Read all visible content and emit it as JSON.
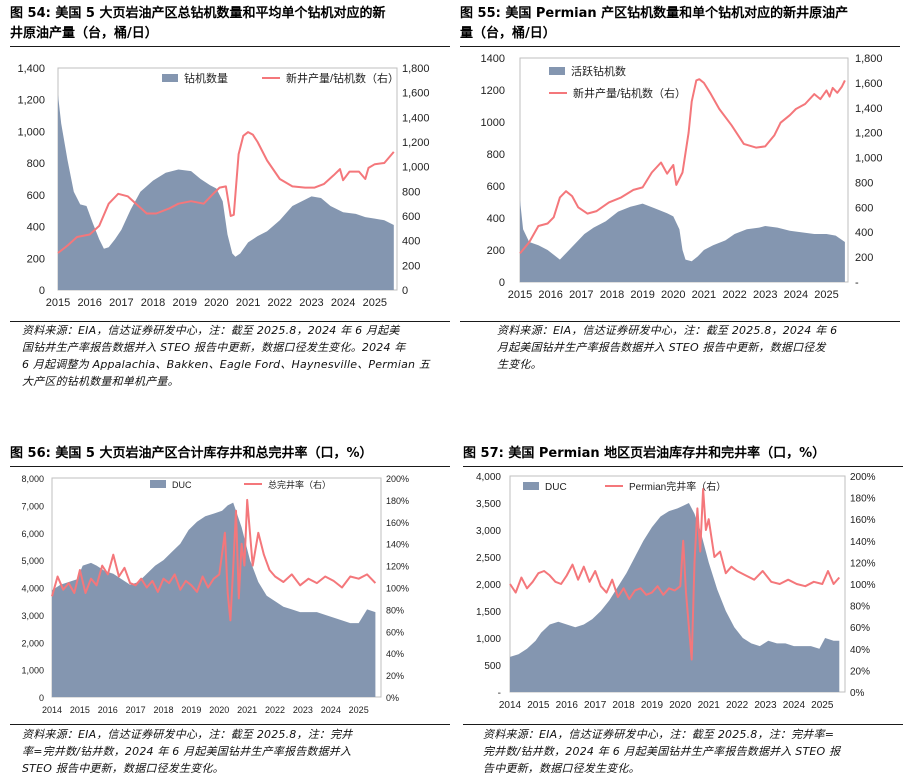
{
  "colors": {
    "area": "#8496b0",
    "line": "#f4777b",
    "frame": "#bfbfbf"
  },
  "panels": [
    {
      "title_line1": "图 54:  美国 5 大页岩油产区总钻机数量和平均单个钻机对应的新",
      "title_line2": "井原油产量（台，桶/日）",
      "source": [
        "资料来源：EIA，信达证券研发中心，注：截至 2025.8，2024 年 6 月起美",
        "国钻井生产率报告数据并入 STEO 报告中更新，数据口径发生变化。2024 年",
        "6 月起调整为 Appalachia、Bakken、Eagle Ford、Haynesville、Permian 五",
        "大产区的钻机数量和单机产量。"
      ]
    },
    {
      "title_line1": "图 55:  美国 Permian 产区钻机数量和单个钻机对应的新井原油产",
      "title_line2": "量（台，桶/日）",
      "source": [
        "资料来源：EIA，信达证券研发中心，注：截至 2025.8，2024 年 6",
        "月起美国钻井生产率报告数据并入 STEO 报告中更新，数据口径发",
        "生变化。"
      ]
    },
    {
      "title_line1": "图 56:  美国 5 大页岩油产区合计库存井和总完井率（口，%）",
      "title_line2": "",
      "source": [
        "资料来源：EIA，信达证券研发中心，注：截至 2025.8，注：完井",
        "率=完井数/钻井数，2024 年 6 月起美国钻井生产率报告数据并入",
        "STEO 报告中更新，数据口径发生变化。"
      ]
    },
    {
      "title_line1": "图 57:  美国 Permian 地区页岩油库存井和完井率（口，%）",
      "title_line2": "",
      "source": [
        "资料来源：EIA，信达证券研发中心，注：截至 2025.8，注：完井率=",
        "完井数/钻井数，2024 年 6 月起美国钻井生产率报告数据并入 STEO 报",
        "告中更新，数据口径发生变化。"
      ]
    }
  ],
  "chart_data": [
    {
      "type": "area",
      "x_ticks": [
        "2015",
        "2016",
        "2017",
        "2018",
        "2019",
        "2020",
        "2021",
        "2022",
        "2023",
        "2024",
        "2025"
      ],
      "ylim": [
        0,
        1400
      ],
      "y_ticks": [
        "0",
        "200",
        "400",
        "600",
        "800",
        "1,000",
        "1,200",
        "1,400"
      ],
      "y2lim": [
        0,
        1800
      ],
      "y2_ticks": [
        "0",
        "200",
        "400",
        "600",
        "800",
        "1,000",
        "1,200",
        "1,400",
        "1,600",
        "1,800"
      ],
      "legend": [
        "钻机数量",
        "新井产量/钻机数（右）"
      ],
      "series": [
        {
          "name": "钻机数量",
          "axis": "left",
          "kind": "area",
          "x": [
            2015.0,
            2015.1,
            2015.3,
            2015.5,
            2015.7,
            2015.9,
            2016.1,
            2016.3,
            2016.45,
            2016.6,
            2016.8,
            2017.0,
            2017.3,
            2017.6,
            2018.0,
            2018.4,
            2018.8,
            2019.2,
            2019.5,
            2019.8,
            2020.0,
            2020.2,
            2020.35,
            2020.5,
            2020.6,
            2020.75,
            2021.0,
            2021.3,
            2021.6,
            2022.0,
            2022.4,
            2022.8,
            2023.0,
            2023.3,
            2023.6,
            2024.0,
            2024.4,
            2024.7,
            2025.0,
            2025.3,
            2025.6
          ],
          "values": [
            1230,
            1050,
            820,
            620,
            540,
            530,
            420,
            320,
            260,
            270,
            320,
            380,
            510,
            620,
            690,
            740,
            760,
            750,
            700,
            660,
            640,
            560,
            350,
            230,
            210,
            230,
            300,
            340,
            370,
            440,
            530,
            570,
            590,
            580,
            530,
            490,
            480,
            460,
            450,
            440,
            410
          ]
        },
        {
          "name": "新井产量/钻机数（右）",
          "axis": "right",
          "kind": "line",
          "x": [
            2015.0,
            2015.3,
            2015.6,
            2016.0,
            2016.3,
            2016.6,
            2016.9,
            2017.2,
            2017.5,
            2017.8,
            2018.1,
            2018.5,
            2018.8,
            2019.2,
            2019.6,
            2019.9,
            2020.1,
            2020.3,
            2020.45,
            2020.55,
            2020.7,
            2020.85,
            2021.0,
            2021.15,
            2021.3,
            2021.6,
            2022.0,
            2022.4,
            2022.8,
            2023.1,
            2023.4,
            2023.7,
            2023.9,
            2024.0,
            2024.2,
            2024.5,
            2024.7,
            2024.8,
            2025.0,
            2025.3,
            2025.6
          ],
          "values": [
            300,
            360,
            430,
            450,
            520,
            700,
            780,
            760,
            690,
            620,
            620,
            660,
            700,
            720,
            700,
            780,
            830,
            840,
            600,
            610,
            1100,
            1250,
            1280,
            1260,
            1200,
            1050,
            900,
            840,
            830,
            830,
            860,
            930,
            980,
            890,
            960,
            960,
            900,
            990,
            1020,
            1030,
            1120
          ]
        }
      ]
    },
    {
      "type": "area",
      "x_ticks": [
        "2015",
        "2016",
        "2017",
        "2018",
        "2019",
        "2020",
        "2021",
        "2022",
        "2023",
        "2024",
        "2025"
      ],
      "ylim": [
        0,
        1400
      ],
      "y_ticks": [
        "0",
        "200",
        "400",
        "600",
        "800",
        "1000",
        "1200",
        "1400"
      ],
      "y2lim": [
        0,
        1800
      ],
      "y2_ticks": [
        "-",
        "200",
        "400",
        "600",
        "800",
        "1,000",
        "1,200",
        "1,400",
        "1,600",
        "1,800"
      ],
      "legend": [
        "活跃钻机数",
        "新井产量/钻机数（右）"
      ],
      "series": [
        {
          "name": "活跃钻机数",
          "axis": "left",
          "kind": "area",
          "x": [
            2015.0,
            2015.1,
            2015.3,
            2015.6,
            2015.9,
            2016.1,
            2016.3,
            2016.5,
            2016.8,
            2017.1,
            2017.4,
            2017.8,
            2018.2,
            2018.6,
            2019.0,
            2019.4,
            2019.8,
            2020.0,
            2020.2,
            2020.3,
            2020.4,
            2020.6,
            2020.8,
            2021.0,
            2021.3,
            2021.7,
            2022.0,
            2022.4,
            2022.8,
            2023.0,
            2023.4,
            2023.8,
            2024.2,
            2024.6,
            2025.0,
            2025.3,
            2025.6
          ],
          "values": [
            510,
            330,
            250,
            230,
            200,
            170,
            140,
            180,
            240,
            300,
            340,
            380,
            440,
            470,
            490,
            460,
            430,
            410,
            330,
            200,
            140,
            130,
            160,
            200,
            230,
            260,
            300,
            330,
            340,
            350,
            340,
            320,
            310,
            300,
            300,
            290,
            250
          ]
        },
        {
          "name": "新井产量/钻机数（右）",
          "axis": "right",
          "kind": "line",
          "x": [
            2015.0,
            2015.3,
            2015.6,
            2015.9,
            2016.1,
            2016.3,
            2016.5,
            2016.7,
            2016.9,
            2017.2,
            2017.5,
            2017.9,
            2018.3,
            2018.7,
            2019.0,
            2019.3,
            2019.6,
            2019.8,
            2020.0,
            2020.1,
            2020.3,
            2020.5,
            2020.6,
            2020.75,
            2020.85,
            2021.0,
            2021.2,
            2021.5,
            2021.9,
            2022.3,
            2022.7,
            2023.0,
            2023.3,
            2023.5,
            2023.8,
            2024.0,
            2024.3,
            2024.6,
            2024.8,
            2025.0,
            2025.1,
            2025.2,
            2025.35,
            2025.5,
            2025.6
          ],
          "values": [
            230,
            320,
            450,
            470,
            520,
            680,
            730,
            690,
            600,
            550,
            570,
            640,
            680,
            740,
            760,
            880,
            960,
            870,
            940,
            780,
            880,
            1200,
            1450,
            1620,
            1630,
            1600,
            1520,
            1390,
            1260,
            1110,
            1080,
            1090,
            1180,
            1280,
            1340,
            1390,
            1430,
            1510,
            1470,
            1540,
            1490,
            1560,
            1520,
            1570,
            1620
          ]
        }
      ]
    },
    {
      "type": "area",
      "x_ticks": [
        "2014",
        "2015",
        "2016",
        "2017",
        "2018",
        "2019",
        "2020",
        "2021",
        "2022",
        "2023",
        "2024",
        "2025"
      ],
      "ylim": [
        0,
        8000
      ],
      "y_ticks": [
        "0",
        "1,000",
        "2,000",
        "3,000",
        "4,000",
        "5,000",
        "6,000",
        "7,000",
        "8,000"
      ],
      "y2lim": [
        0,
        200
      ],
      "y2_ticks": [
        "0%",
        "20%",
        "40%",
        "60%",
        "80%",
        "100%",
        "120%",
        "140%",
        "160%",
        "180%",
        "200%"
      ],
      "legend": [
        "DUC",
        "总完井率（右）"
      ],
      "series": [
        {
          "name": "DUC",
          "axis": "left",
          "kind": "area",
          "x": [
            2014.0,
            2014.3,
            2014.6,
            2014.9,
            2015.1,
            2015.4,
            2015.6,
            2015.9,
            2016.2,
            2016.5,
            2016.8,
            2017.1,
            2017.4,
            2017.7,
            2018.0,
            2018.3,
            2018.6,
            2018.9,
            2019.2,
            2019.5,
            2019.8,
            2020.1,
            2020.3,
            2020.5,
            2020.8,
            2021.1,
            2021.4,
            2021.7,
            2022.0,
            2022.3,
            2022.6,
            2022.9,
            2023.2,
            2023.5,
            2023.8,
            2024.1,
            2024.4,
            2024.7,
            2025.0,
            2025.3,
            2025.6
          ],
          "values": [
            3900,
            4100,
            4200,
            4300,
            4800,
            4900,
            4800,
            4600,
            4500,
            4300,
            4100,
            4200,
            4500,
            4800,
            5000,
            5300,
            5600,
            6100,
            6400,
            6600,
            6700,
            6800,
            7000,
            7100,
            6200,
            5000,
            4200,
            3700,
            3500,
            3300,
            3200,
            3100,
            3100,
            3100,
            3000,
            2900,
            2800,
            2700,
            2700,
            3200,
            3100
          ]
        },
        {
          "name": "总完井率（右）",
          "axis": "right",
          "kind": "line",
          "x": [
            2014.0,
            2014.2,
            2014.4,
            2014.6,
            2014.8,
            2015.0,
            2015.2,
            2015.4,
            2015.6,
            2015.8,
            2016.0,
            2016.2,
            2016.4,
            2016.6,
            2016.8,
            2017.0,
            2017.2,
            2017.4,
            2017.6,
            2017.8,
            2018.0,
            2018.2,
            2018.4,
            2018.6,
            2018.8,
            2019.0,
            2019.2,
            2019.4,
            2019.6,
            2019.8,
            2020.0,
            2020.2,
            2020.3,
            2020.4,
            2020.5,
            2020.6,
            2020.7,
            2020.8,
            2020.9,
            2021.0,
            2021.2,
            2021.4,
            2021.6,
            2021.8,
            2022.0,
            2022.3,
            2022.6,
            2022.9,
            2023.2,
            2023.5,
            2023.8,
            2024.1,
            2024.4,
            2024.7,
            2025.0,
            2025.3,
            2025.6
          ],
          "values": [
            92,
            110,
            98,
            104,
            95,
            116,
            95,
            108,
            102,
            120,
            112,
            130,
            110,
            118,
            104,
            102,
            108,
            100,
            106,
            96,
            108,
            104,
            112,
            98,
            106,
            102,
            96,
            110,
            100,
            108,
            112,
            150,
            95,
            70,
            118,
            170,
            90,
            140,
            120,
            180,
            120,
            150,
            130,
            116,
            110,
            105,
            112,
            102,
            108,
            104,
            110,
            106,
            100,
            110,
            108,
            112,
            104
          ]
        }
      ]
    },
    {
      "type": "area",
      "x_ticks": [
        "2014",
        "2015",
        "2016",
        "2017",
        "2018",
        "2019",
        "2020",
        "2021",
        "2022",
        "2023",
        "2024",
        "2025"
      ],
      "ylim": [
        0,
        4000
      ],
      "y_ticks": [
        "-",
        "500",
        "1,000",
        "1,500",
        "2,000",
        "2,500",
        "3,000",
        "3,500",
        "4,000"
      ],
      "y2lim": [
        0,
        200
      ],
      "y2_ticks": [
        "0%",
        "20%",
        "40%",
        "60%",
        "80%",
        "100%",
        "120%",
        "140%",
        "160%",
        "180%",
        "200%"
      ],
      "legend": [
        "DUC",
        "Permian完井率（右）"
      ],
      "series": [
        {
          "name": "DUC",
          "axis": "left",
          "kind": "area",
          "x": [
            2014.0,
            2014.3,
            2014.6,
            2014.9,
            2015.1,
            2015.4,
            2015.7,
            2016.0,
            2016.3,
            2016.6,
            2016.9,
            2017.2,
            2017.5,
            2017.8,
            2018.1,
            2018.4,
            2018.7,
            2019.0,
            2019.3,
            2019.6,
            2019.9,
            2020.1,
            2020.3,
            2020.5,
            2020.7,
            2021.0,
            2021.3,
            2021.6,
            2021.9,
            2022.2,
            2022.5,
            2022.8,
            2023.1,
            2023.4,
            2023.7,
            2024.0,
            2024.3,
            2024.6,
            2024.9,
            2025.1,
            2025.4,
            2025.6
          ],
          "values": [
            650,
            700,
            800,
            950,
            1100,
            1250,
            1300,
            1250,
            1200,
            1250,
            1350,
            1500,
            1700,
            1950,
            2200,
            2500,
            2800,
            3050,
            3250,
            3350,
            3400,
            3450,
            3500,
            3300,
            3000,
            2400,
            1900,
            1500,
            1200,
            1000,
            900,
            850,
            950,
            900,
            900,
            850,
            850,
            850,
            800,
            1000,
            950,
            950
          ]
        },
        {
          "name": "Permian完井率（右）",
          "axis": "right",
          "kind": "line",
          "x": [
            2014.0,
            2014.2,
            2014.4,
            2014.6,
            2014.8,
            2015.0,
            2015.2,
            2015.4,
            2015.6,
            2015.8,
            2016.0,
            2016.2,
            2016.4,
            2016.6,
            2016.8,
            2017.0,
            2017.2,
            2017.4,
            2017.6,
            2017.8,
            2018.0,
            2018.2,
            2018.4,
            2018.6,
            2018.8,
            2019.0,
            2019.2,
            2019.4,
            2019.6,
            2019.8,
            2020.0,
            2020.1,
            2020.2,
            2020.3,
            2020.4,
            2020.5,
            2020.6,
            2020.7,
            2020.8,
            2020.9,
            2021.0,
            2021.2,
            2021.4,
            2021.6,
            2021.8,
            2022.0,
            2022.3,
            2022.6,
            2022.9,
            2023.2,
            2023.5,
            2023.8,
            2024.1,
            2024.4,
            2024.7,
            2025.0,
            2025.2,
            2025.4,
            2025.6
          ],
          "values": [
            100,
            92,
            106,
            96,
            102,
            110,
            112,
            108,
            102,
            100,
            108,
            118,
            104,
            116,
            102,
            112,
            98,
            92,
            104,
            88,
            96,
            86,
            94,
            96,
            90,
            92,
            98,
            90,
            96,
            94,
            98,
            140,
            92,
            60,
            30,
            120,
            170,
            130,
            188,
            150,
            160,
            125,
            130,
            110,
            116,
            112,
            108,
            104,
            112,
            102,
            100,
            104,
            100,
            98,
            102,
            100,
            112,
            100,
            106
          ]
        }
      ]
    }
  ]
}
